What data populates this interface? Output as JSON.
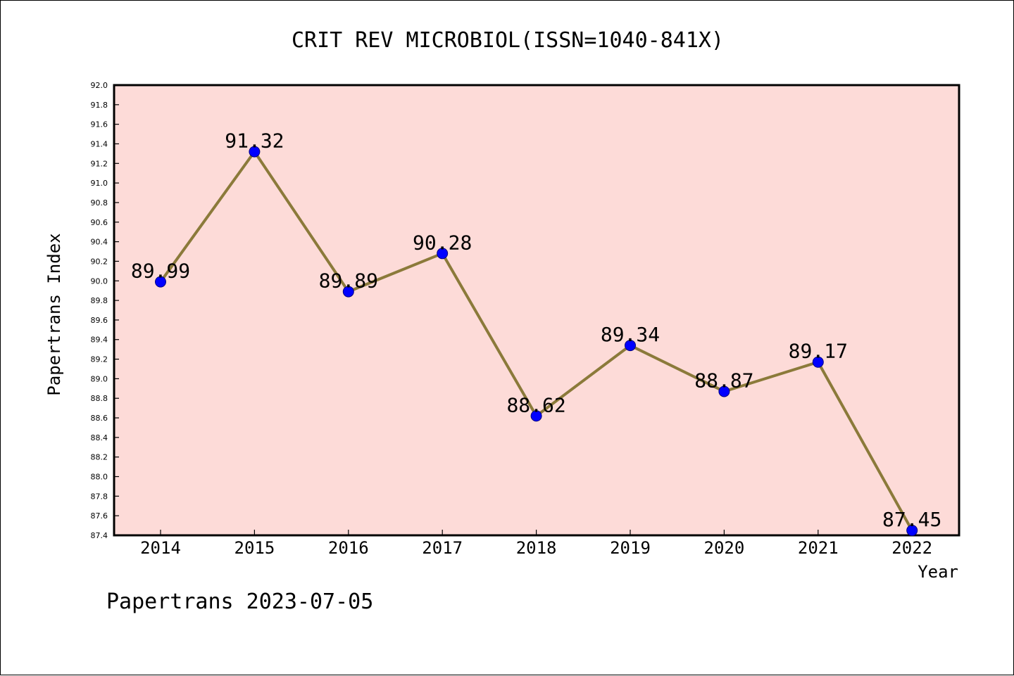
{
  "chart_data": {
    "type": "line",
    "title": "CRIT REV MICROBIOL(ISSN=1040-841X)",
    "xlabel": "Year",
    "ylabel": "Papertrans Index",
    "categories": [
      "2014",
      "2015",
      "2016",
      "2017",
      "2018",
      "2019",
      "2020",
      "2021",
      "2022"
    ],
    "values": [
      89.99,
      91.32,
      89.89,
      90.28,
      88.62,
      89.34,
      88.87,
      89.17,
      87.45
    ],
    "data_labels": [
      "89.99",
      "91.32",
      "89.89",
      "90.28",
      "88.62",
      "89.34",
      "88.87",
      "89.17",
      "87.45"
    ],
    "ylim": [
      87.4,
      92.0
    ],
    "yticks": [
      "87.4",
      "87.6",
      "87.8",
      "88.0",
      "88.2",
      "88.4",
      "88.6",
      "88.8",
      "89.0",
      "89.2",
      "89.4",
      "89.6",
      "89.8",
      "90.0",
      "90.2",
      "90.4",
      "90.6",
      "90.8",
      "91.0",
      "91.2",
      "91.4",
      "91.6",
      "91.8",
      "92.0"
    ],
    "grid": false,
    "legend": "none",
    "colors": {
      "plot_background": "#fddbd8",
      "line": "#8b7a3a",
      "marker": "#0000ff",
      "marker_edge": "#000080"
    }
  },
  "footer": {
    "text": "Papertrans 2023-07-05"
  }
}
